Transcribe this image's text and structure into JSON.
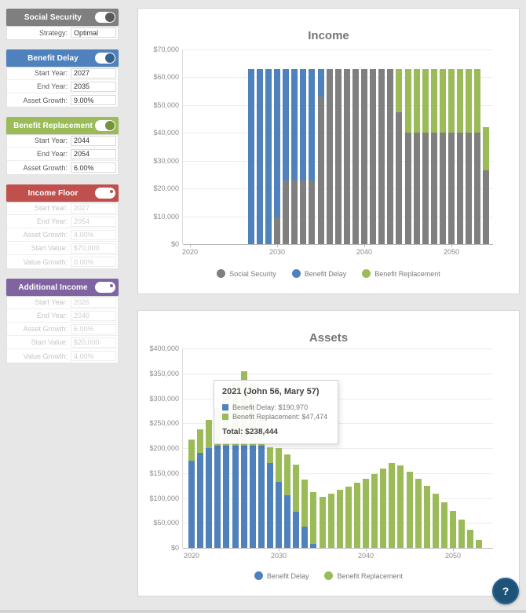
{
  "palette": {
    "social_security": "#7f7f7f",
    "benefit_delay": "#4f81bd",
    "benefit_replacement": "#9bbb59",
    "income_floor": "#c0504d",
    "additional_income": "#8064a2",
    "help_button_bg": "#1e5377"
  },
  "sidebar": {
    "panels": [
      {
        "id": "social-security",
        "title": "Social Security",
        "header_color": "#7f7f7f",
        "knob_color": "#595959",
        "enabled": true,
        "rows": [
          {
            "label": "Strategy:",
            "value": "Optimal"
          }
        ]
      },
      {
        "id": "benefit-delay",
        "title": "Benefit Delay",
        "header_color": "#4f81bd",
        "knob_color": "#36618f",
        "enabled": true,
        "rows": [
          {
            "label": "Start Year:",
            "value": "2027"
          },
          {
            "label": "End Year:",
            "value": "2035"
          },
          {
            "label": "Asset Growth:",
            "value": "9.00%"
          }
        ]
      },
      {
        "id": "benefit-replacement",
        "title": "Benefit Replacement",
        "header_color": "#9bbb59",
        "knob_color": "#76933c",
        "enabled": true,
        "rows": [
          {
            "label": "Start Year:",
            "value": "2044"
          },
          {
            "label": "End Year:",
            "value": "2054"
          },
          {
            "label": "Asset Growth:",
            "value": "6.00%"
          }
        ]
      },
      {
        "id": "income-floor",
        "title": "Income Floor",
        "header_color": "#c0504d",
        "knob_color": "#c0504d",
        "enabled": false,
        "rows": [
          {
            "label": "Start Year:",
            "value": "2027"
          },
          {
            "label": "End Year:",
            "value": "2054"
          },
          {
            "label": "Asset Growth:",
            "value": "4.00%"
          },
          {
            "label": "Start Value:",
            "value": "$70,000"
          },
          {
            "label": "Value Growth:",
            "value": "0.00%"
          }
        ]
      },
      {
        "id": "additional-income",
        "title": "Additional Income",
        "header_color": "#8064a2",
        "knob_color": "#8064a2",
        "enabled": false,
        "rows": [
          {
            "label": "Start Year:",
            "value": "2026"
          },
          {
            "label": "End Year:",
            "value": "2040"
          },
          {
            "label": "Asset Growth:",
            "value": "6.00%"
          },
          {
            "label": "Start Value:",
            "value": "$20,000"
          },
          {
            "label": "Value Growth:",
            "value": "4.00%"
          }
        ]
      }
    ]
  },
  "chart_data": [
    {
      "id": "income",
      "type": "bar",
      "stacked": true,
      "title": "Income",
      "ylim": [
        0,
        70000
      ],
      "yticks": [
        0,
        10000,
        20000,
        30000,
        40000,
        50000,
        60000,
        70000
      ],
      "ytick_labels": [
        "$0",
        "$10,000",
        "$20,000",
        "$30,000",
        "$40,000",
        "$50,000",
        "$60,000",
        "$70,000"
      ],
      "xticks": [
        2020,
        2030,
        2040,
        2050
      ],
      "grid": true,
      "legend_position": "bottom",
      "stack_order": [
        "social_security",
        "benefit_delay",
        "benefit_replacement"
      ],
      "legend": [
        {
          "key": "social_security",
          "name": "Social Security",
          "color": "#7f7f7f"
        },
        {
          "key": "benefit_delay",
          "name": "Benefit Delay",
          "color": "#4f81bd"
        },
        {
          "key": "benefit_replacement",
          "name": "Benefit Replacement",
          "color": "#9bbb59"
        }
      ],
      "bars": [
        {
          "year": 2027,
          "benefit_delay": 63000
        },
        {
          "year": 2028,
          "benefit_delay": 63000
        },
        {
          "year": 2029,
          "benefit_delay": 63000
        },
        {
          "year": 2030,
          "social_security": 9500,
          "benefit_delay": 53500
        },
        {
          "year": 2031,
          "social_security": 23000,
          "benefit_delay": 40000
        },
        {
          "year": 2032,
          "social_security": 23000,
          "benefit_delay": 40000
        },
        {
          "year": 2033,
          "social_security": 23000,
          "benefit_delay": 40000
        },
        {
          "year": 2034,
          "social_security": 23000,
          "benefit_delay": 40000
        },
        {
          "year": 2035,
          "social_security": 53000,
          "benefit_delay": 10000
        },
        {
          "year": 2036,
          "social_security": 63000
        },
        {
          "year": 2037,
          "social_security": 63000
        },
        {
          "year": 2038,
          "social_security": 63000
        },
        {
          "year": 2039,
          "social_security": 63000
        },
        {
          "year": 2040,
          "social_security": 63000
        },
        {
          "year": 2041,
          "social_security": 63000
        },
        {
          "year": 2042,
          "social_security": 63000
        },
        {
          "year": 2043,
          "social_security": 63000
        },
        {
          "year": 2044,
          "social_security": 47500,
          "benefit_replacement": 15500
        },
        {
          "year": 2045,
          "social_security": 40000,
          "benefit_replacement": 23000
        },
        {
          "year": 2046,
          "social_security": 40000,
          "benefit_replacement": 23000
        },
        {
          "year": 2047,
          "social_security": 40000,
          "benefit_replacement": 23000
        },
        {
          "year": 2048,
          "social_security": 40000,
          "benefit_replacement": 23000
        },
        {
          "year": 2049,
          "social_security": 40000,
          "benefit_replacement": 23000
        },
        {
          "year": 2050,
          "social_security": 40000,
          "benefit_replacement": 23000
        },
        {
          "year": 2051,
          "social_security": 40000,
          "benefit_replacement": 23000
        },
        {
          "year": 2052,
          "social_security": 40000,
          "benefit_replacement": 23000
        },
        {
          "year": 2053,
          "social_security": 40000,
          "benefit_replacement": 23000
        },
        {
          "year": 2054,
          "social_security": 26500,
          "benefit_replacement": 15500
        }
      ]
    },
    {
      "id": "assets",
      "type": "bar",
      "stacked": true,
      "title": "Assets",
      "ylim": [
        0,
        400000
      ],
      "yticks": [
        0,
        50000,
        100000,
        150000,
        200000,
        250000,
        300000,
        350000,
        400000
      ],
      "ytick_labels": [
        "$0",
        "$50,000",
        "$100,000",
        "$150,000",
        "$200,000",
        "$250,000",
        "$300,000",
        "$350,000",
        "$400,000"
      ],
      "xticks": [
        2020,
        2030,
        2040,
        2050
      ],
      "grid": true,
      "legend_position": "bottom",
      "stack_order": [
        "benefit_delay",
        "benefit_replacement"
      ],
      "legend": [
        {
          "key": "benefit_delay",
          "name": "Benefit Delay",
          "color": "#4f81bd"
        },
        {
          "key": "benefit_replacement",
          "name": "Benefit Replacement",
          "color": "#9bbb59"
        }
      ],
      "bars": [
        {
          "year": 2020,
          "benefit_delay": 175000,
          "benefit_replacement": 43000
        },
        {
          "year": 2021,
          "benefit_delay": 190970,
          "benefit_replacement": 47474
        },
        {
          "year": 2022,
          "benefit_delay": 200000,
          "benefit_replacement": 57000
        },
        {
          "year": 2023,
          "benefit_delay": 205000,
          "benefit_replacement": 75000
        },
        {
          "year": 2024,
          "benefit_delay": 205000,
          "benefit_replacement": 100000
        },
        {
          "year": 2025,
          "benefit_delay": 205000,
          "benefit_replacement": 125000
        },
        {
          "year": 2026,
          "benefit_delay": 205000,
          "benefit_replacement": 150000
        },
        {
          "year": 2027,
          "benefit_delay": 205000,
          "benefit_replacement": 125000
        },
        {
          "year": 2028,
          "benefit_delay": 205000,
          "benefit_replacement": 55000
        },
        {
          "year": 2029,
          "benefit_delay": 170000,
          "benefit_replacement": 31000
        },
        {
          "year": 2030,
          "benefit_delay": 133000,
          "benefit_replacement": 67000
        },
        {
          "year": 2031,
          "benefit_delay": 106000,
          "benefit_replacement": 81000
        },
        {
          "year": 2032,
          "benefit_delay": 73000,
          "benefit_replacement": 94000
        },
        {
          "year": 2033,
          "benefit_delay": 42000,
          "benefit_replacement": 95000
        },
        {
          "year": 2034,
          "benefit_delay": 8000,
          "benefit_replacement": 104000
        },
        {
          "year": 2035,
          "benefit_replacement": 102000
        },
        {
          "year": 2036,
          "benefit_replacement": 109000
        },
        {
          "year": 2037,
          "benefit_replacement": 116000
        },
        {
          "year": 2038,
          "benefit_replacement": 123000
        },
        {
          "year": 2039,
          "benefit_replacement": 131000
        },
        {
          "year": 2040,
          "benefit_replacement": 139000
        },
        {
          "year": 2041,
          "benefit_replacement": 148000
        },
        {
          "year": 2042,
          "benefit_replacement": 159000
        },
        {
          "year": 2043,
          "benefit_replacement": 170000
        },
        {
          "year": 2044,
          "benefit_replacement": 166000
        },
        {
          "year": 2045,
          "benefit_replacement": 153000
        },
        {
          "year": 2046,
          "benefit_replacement": 139000
        },
        {
          "year": 2047,
          "benefit_replacement": 124000
        },
        {
          "year": 2048,
          "benefit_replacement": 108000
        },
        {
          "year": 2049,
          "benefit_replacement": 91000
        },
        {
          "year": 2050,
          "benefit_replacement": 74000
        },
        {
          "year": 2051,
          "benefit_replacement": 56000
        },
        {
          "year": 2052,
          "benefit_replacement": 36000
        },
        {
          "year": 2053,
          "benefit_replacement": 15000
        }
      ],
      "tooltip": {
        "title": "2021 (John 56, Mary 57)",
        "lines": [
          {
            "label": "Benefit Delay",
            "value": "$190,970",
            "color": "#4f81bd"
          },
          {
            "label": "Benefit Replacement",
            "value": "$47,474",
            "color": "#9bbb59"
          }
        ],
        "total_label": "Total:",
        "total_value": "$238,444"
      }
    }
  ],
  "help_button": {
    "label": "?"
  }
}
